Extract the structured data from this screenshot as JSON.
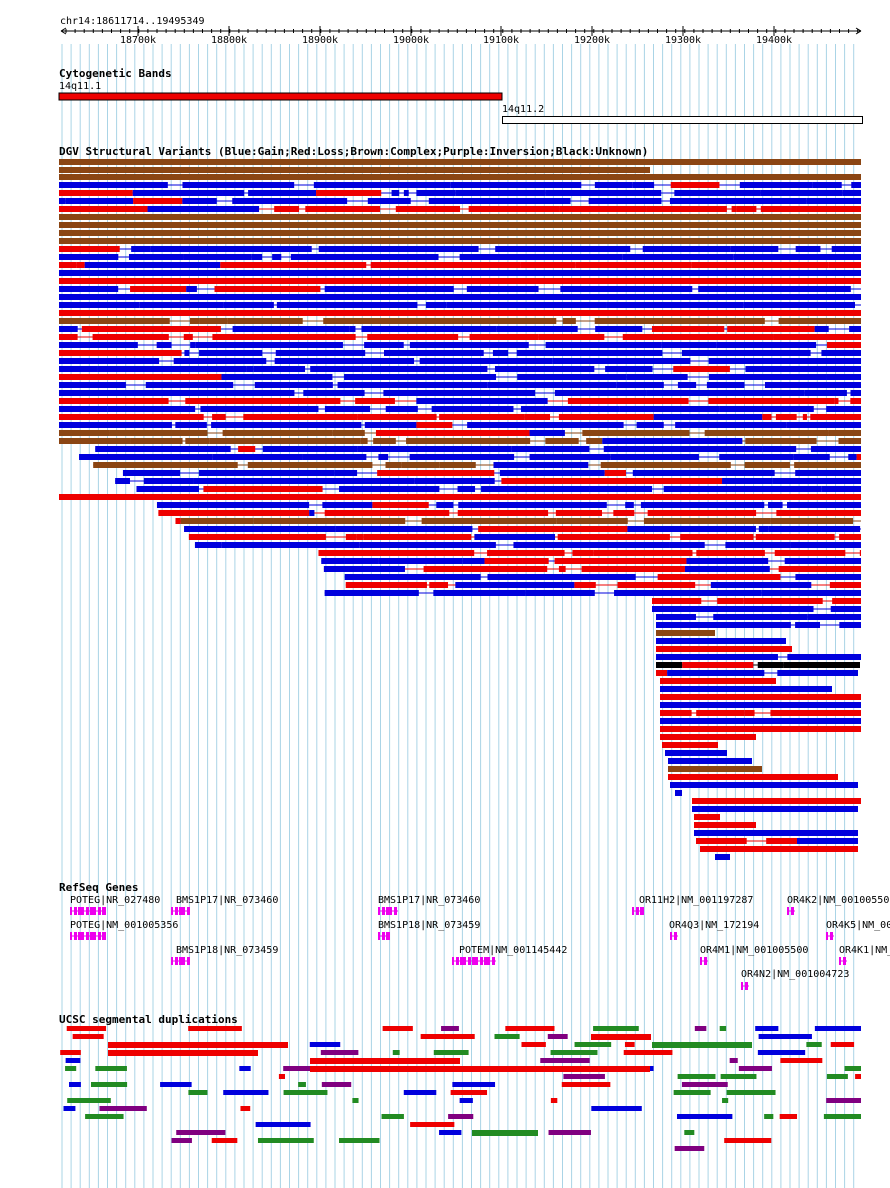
{
  "header": {
    "position": "chr14:18611714..19495349"
  },
  "ruler": {
    "ticks": [
      "18700k",
      "18800k",
      "18900k",
      "19000k",
      "19100k",
      "19200k",
      "19300k",
      "19400k"
    ]
  },
  "cytoband": {
    "title": "Cytogenetic Bands",
    "bands": [
      "14q11.1",
      "14q11.2"
    ],
    "colors": {
      "centromere": "#ee0000"
    }
  },
  "dgv": {
    "title": "DGV Structural Variants (Blue:Gain;Red:Loss;Brown:Complex;Purple:Inversion;Black:Unknown)",
    "colors": {
      "gain": "#0000dd",
      "loss": "#ee0000",
      "complex": "#8b4513",
      "inversion": "#800080",
      "unknown": "#000000"
    }
  },
  "refseq": {
    "title": "RefSeq Genes",
    "color": "#ee00ee",
    "genes": [
      "POTEG|NR_027480",
      "BMS1P17|NR_073460",
      "BMS1P17|NR_073460",
      "OR11H2|NM_001197287",
      "OR4K2|NM_00100550",
      "POTEG|NM_001005356",
      "BMS1P18|NR_073459",
      "OR4Q3|NM_172194",
      "OR4K5|NM_00",
      "BMS1P18|NR_073459",
      "POTEM|NM_001145442",
      "OR4M1|NM_001005500",
      "OR4K1|NM_",
      "OR4N2|NM_001004723"
    ]
  },
  "segdups": {
    "title": "UCSC segmental duplications",
    "colors": {
      "blue": "#0000dd",
      "red": "#ee0000",
      "green": "#228b22",
      "purple": "#800080"
    }
  }
}
